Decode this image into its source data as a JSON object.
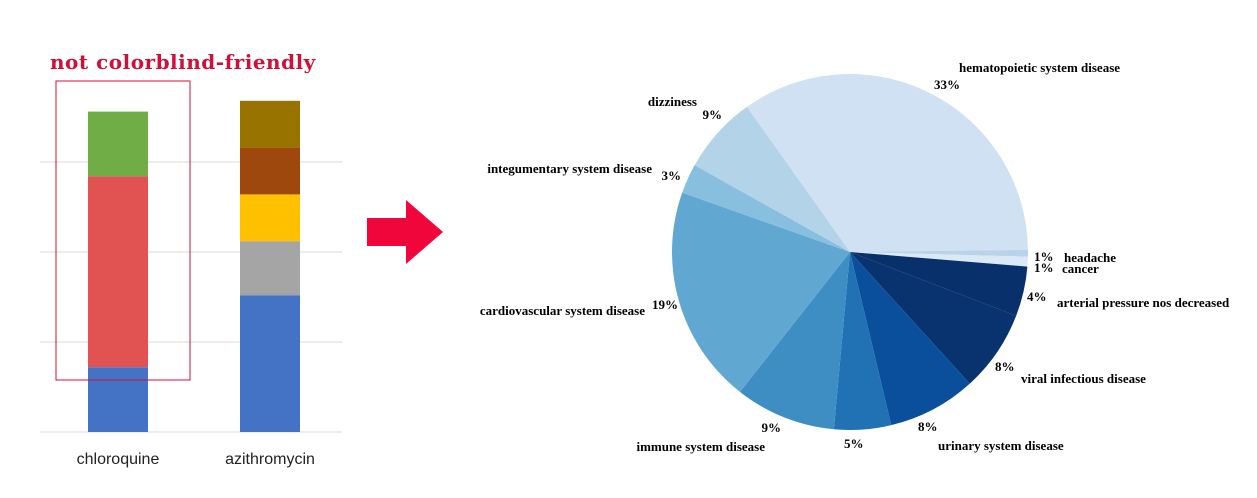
{
  "annotation": "not colorblind-friendly",
  "colors": {
    "annotation": "#d0103a",
    "arrow": "#f0063a",
    "gridline": "#d9d9d9"
  },
  "chart_data": [
    {
      "type": "bar",
      "stacked": true,
      "categories": [
        "chloroquine",
        "azithromycin"
      ],
      "series": [
        {
          "values": [
            18,
            30
          ],
          "color": "#4472c4"
        },
        {
          "values": [
            0,
            13
          ],
          "color": "#a5a5a5"
        },
        {
          "values": [
            0,
            12
          ],
          "color": "#ffc000"
        },
        {
          "values": [
            48,
            0
          ],
          "color": "#e15252"
        },
        {
          "values": [
            0,
            12
          ],
          "color": "#9e480e"
        },
        {
          "values": [
            16,
            11
          ],
          "color": "#997300"
        },
        {
          "values": [
            0,
            0
          ],
          "color": "#70ad47"
        }
      ],
      "green_top": [
        0,
        0
      ],
      "segments_note": "",
      "ylim": [
        0,
        100
      ],
      "grid": true,
      "highlight": "chloroquine"
    },
    {
      "type": "pie",
      "slices": [
        {
          "label": "hematopoietic system disease",
          "pct": "33%",
          "value": 33,
          "color": "#cfe1f2"
        },
        {
          "label": "headache",
          "pct": "1%",
          "value": 1,
          "color": "#b7d4ea"
        },
        {
          "label": "cancer",
          "pct": "1%",
          "value": 1,
          "color": "#dbe9f6"
        },
        {
          "label": "arterial pressure nos decreased",
          "pct": "4%",
          "value": 4,
          "color": "#08306b"
        },
        {
          "label": "viral infectious disease",
          "pct": "8%",
          "value": 8,
          "color": "#08336e"
        },
        {
          "label": "urinary system disease",
          "pct": "8%",
          "value": 8,
          "color": "#0a4f9c"
        },
        {
          "label": "",
          "pct": "5%",
          "value": 5,
          "color": "#2171b5"
        },
        {
          "label": "immune system disease",
          "pct": "9%",
          "value": 9,
          "color": "#3e8ec4"
        },
        {
          "label": "cardiovascular system disease",
          "pct": "19%",
          "value": 19,
          "color": "#60a7d2"
        },
        {
          "label": "integumentary system disease",
          "pct": "3%",
          "value": 3,
          "color": "#88bfdf"
        },
        {
          "label": "dizziness",
          "pct": "9%",
          "value": 9,
          "color": "#b3d3e8"
        }
      ]
    }
  ]
}
